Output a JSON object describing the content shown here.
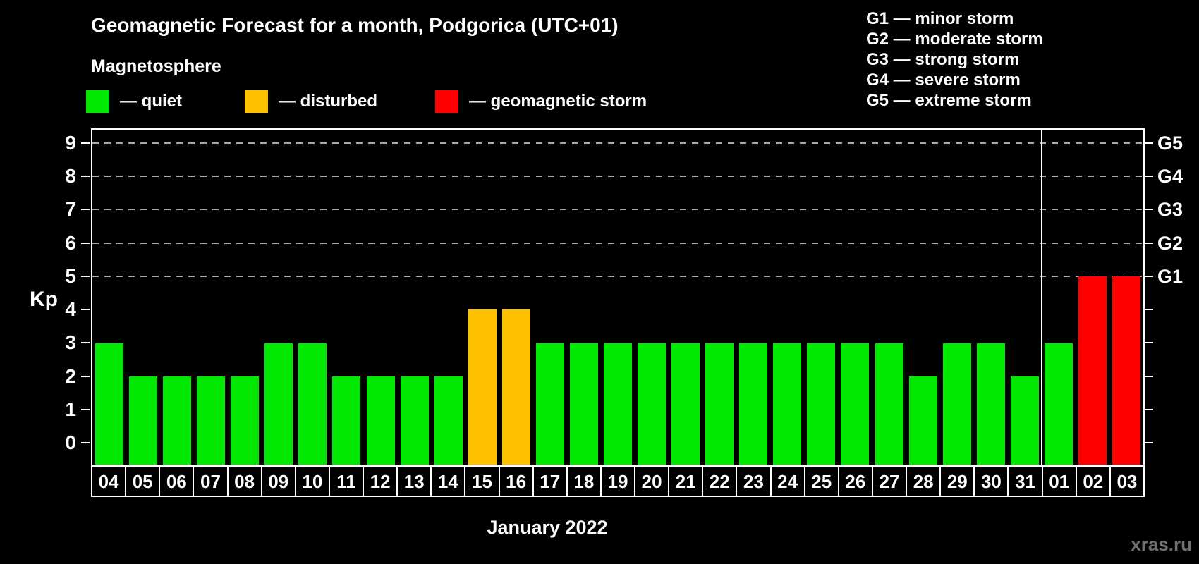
{
  "title": "Geomagnetic Forecast for a month, Podgorica (UTC+01)",
  "subtitle": "Magnetosphere",
  "legend": {
    "items": [
      {
        "key": "quiet",
        "label": "— quiet",
        "color": "#00E800"
      },
      {
        "key": "disturbed",
        "label": "— disturbed",
        "color": "#FFC200"
      },
      {
        "key": "storm",
        "label": "— geomagnetic storm",
        "color": "#FF0000"
      }
    ]
  },
  "storm_scale": {
    "lines": [
      {
        "text": "G1 — minor storm"
      },
      {
        "text": "G2 — moderate storm"
      },
      {
        "text": "G3 — strong storm"
      },
      {
        "text": "G4 — severe storm"
      },
      {
        "text": "G5 — extreme storm"
      }
    ]
  },
  "y_axis": {
    "label": "Kp",
    "ticks": [
      "0",
      "1",
      "2",
      "3",
      "4",
      "5",
      "6",
      "7",
      "8",
      "9"
    ]
  },
  "right_axis": {
    "labels": [
      {
        "kp": 5,
        "text": "G1"
      },
      {
        "kp": 6,
        "text": "G2"
      },
      {
        "kp": 7,
        "text": "G3"
      },
      {
        "kp": 8,
        "text": "G4"
      },
      {
        "kp": 9,
        "text": "G5"
      }
    ]
  },
  "x_axis": {
    "month_label": "January 2022"
  },
  "watermark": "xras.ru",
  "chart_data": {
    "type": "bar",
    "title": "Geomagnetic Forecast for a month, Podgorica (UTC+01)",
    "ylabel": "Kp",
    "ylim": [
      0,
      9
    ],
    "grid": "dashed horizontal at Kp 5-9 only",
    "legend_position": "top-left",
    "categories": [
      "04",
      "05",
      "06",
      "07",
      "08",
      "09",
      "10",
      "11",
      "12",
      "13",
      "14",
      "15",
      "16",
      "17",
      "18",
      "19",
      "20",
      "21",
      "22",
      "23",
      "24",
      "25",
      "26",
      "27",
      "28",
      "29",
      "30",
      "31",
      "01",
      "02",
      "03"
    ],
    "values": [
      3,
      2,
      2,
      2,
      2,
      3,
      3,
      2,
      2,
      2,
      2,
      4,
      4,
      3,
      3,
      3,
      3,
      3,
      3,
      3,
      3,
      3,
      3,
      3,
      2,
      3,
      3,
      2,
      3,
      5,
      5
    ],
    "statuses": [
      "quiet",
      "quiet",
      "quiet",
      "quiet",
      "quiet",
      "quiet",
      "quiet",
      "quiet",
      "quiet",
      "quiet",
      "quiet",
      "disturbed",
      "disturbed",
      "quiet",
      "quiet",
      "quiet",
      "quiet",
      "quiet",
      "quiet",
      "quiet",
      "quiet",
      "quiet",
      "quiet",
      "quiet",
      "quiet",
      "quiet",
      "quiet",
      "quiet",
      "quiet",
      "storm",
      "storm"
    ],
    "colors": {
      "quiet": "#00E800",
      "disturbed": "#FFC200",
      "storm": "#FF0000"
    },
    "gridlines_kp": [
      5,
      6,
      7,
      8,
      9
    ],
    "month_separator_after_index": 27
  }
}
